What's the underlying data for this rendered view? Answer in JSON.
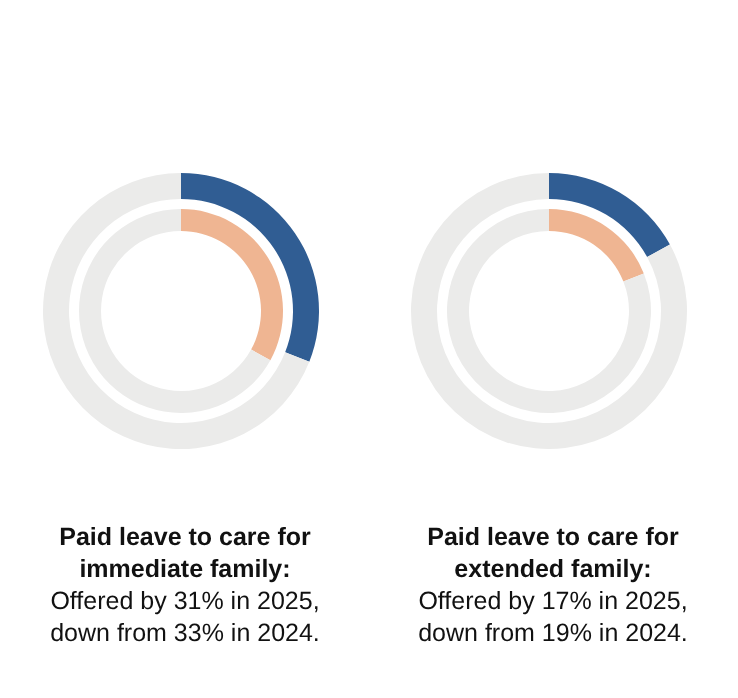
{
  "chart_data": [
    {
      "type": "donut",
      "title": "Paid leave to care for immediate family:",
      "subtitle": "Offered by 31% in 2025, down from 33% in 2024.",
      "categories": [
        null,
        null
      ],
      "series": [
        {
          "values": [
            31,
            69
          ],
          "colors": [
            "#305d93",
            "#ebebea"
          ]
        },
        {
          "values": [
            33,
            67
          ],
          "colors": [
            "#efb592",
            "#ebebea"
          ]
        }
      ]
    },
    {
      "type": "donut",
      "title": "Paid leave to care for extended family:",
      "subtitle": "Offered by 17% in 2025, down from 19% in 2024.",
      "categories": [
        null,
        null
      ],
      "series": [
        {
          "values": [
            17,
            83
          ],
          "colors": [
            "#305d93",
            "#ebebea"
          ]
        },
        {
          "values": [
            19,
            81
          ],
          "colors": [
            "#efb592",
            "#ebebea"
          ]
        }
      ]
    }
  ]
}
